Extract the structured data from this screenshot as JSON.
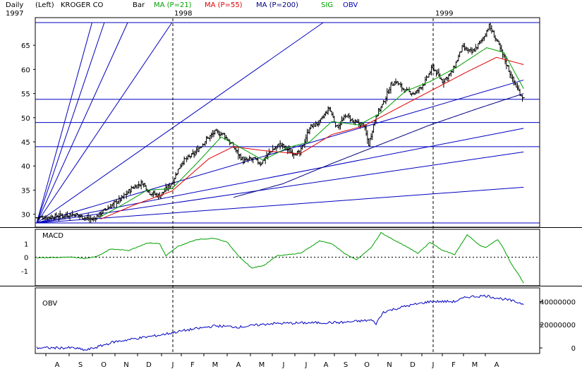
{
  "header": {
    "period": "Daily",
    "scale": "(Left)",
    "company": "KROGER CO",
    "start_year": "1997",
    "type_label": "Bar",
    "legend": [
      {
        "label": "MA (P=21)",
        "color": "#00a000"
      },
      {
        "label": "MA (P=55)",
        "color": "#e00000"
      },
      {
        "label": "MA (P=200)",
        "color": "#000080"
      },
      {
        "label": "SIG",
        "color": "#00a000"
      },
      {
        "label": "OBV",
        "color": "#0000c0"
      }
    ]
  },
  "year_markers": [
    "1998",
    "1999"
  ],
  "month_labels": [
    "A",
    "S",
    "O",
    "N",
    "D",
    "J",
    "F",
    "M",
    "A",
    "M",
    "J",
    "J",
    "A",
    "S",
    "O",
    "N",
    "D",
    "J",
    "F",
    "M",
    "A"
  ],
  "panel_labels": {
    "macd": "MACD",
    "obv": "OBV"
  },
  "colors": {
    "price_bar": "#000000",
    "ma21": "#00a000",
    "ma55": "#e00000",
    "ma200": "#000080",
    "gann": "#0000c0",
    "macd": "#00a000",
    "obv": "#0000c0"
  },
  "chart_data": [
    {
      "type": "line",
      "title": "KROGER CO",
      "panel": "price",
      "y_ticks": [
        30,
        35,
        40,
        45,
        50,
        55,
        60,
        65
      ],
      "ylim": [
        28.2,
        69.7
      ],
      "price_anchors": [
        [
          0,
          29.3
        ],
        [
          10,
          29.4
        ],
        [
          22,
          29.8
        ],
        [
          31,
          30.0
        ],
        [
          40,
          29.2
        ],
        [
          46,
          28.9
        ],
        [
          52,
          30.2
        ],
        [
          60,
          31.7
        ],
        [
          70,
          33.5
        ],
        [
          78,
          35.5
        ],
        [
          86,
          36.5
        ],
        [
          92,
          34.5
        ],
        [
          100,
          33.8
        ],
        [
          110,
          36.5
        ],
        [
          118,
          40.8
        ],
        [
          128,
          42.5
        ],
        [
          138,
          45.5
        ],
        [
          145,
          47.0
        ],
        [
          152,
          46.5
        ],
        [
          160,
          44.0
        ],
        [
          168,
          41.0
        ],
        [
          176,
          41.5
        ],
        [
          182,
          40.5
        ],
        [
          190,
          43.0
        ],
        [
          198,
          44.5
        ],
        [
          206,
          43.0
        ],
        [
          214,
          42.5
        ],
        [
          222,
          48.0
        ],
        [
          230,
          49.0
        ],
        [
          238,
          52.0
        ],
        [
          244,
          48.0
        ],
        [
          252,
          50.5
        ],
        [
          258,
          49.0
        ],
        [
          266,
          48.5
        ],
        [
          270,
          44.5
        ],
        [
          276,
          50.5
        ],
        [
          282,
          53.0
        ],
        [
          288,
          56.8
        ],
        [
          292,
          57.5
        ],
        [
          300,
          55.5
        ],
        [
          308,
          55.0
        ],
        [
          316,
          57.5
        ],
        [
          322,
          60.5
        ],
        [
          330,
          57.5
        ],
        [
          338,
          59.5
        ],
        [
          346,
          64.5
        ],
        [
          354,
          63.5
        ],
        [
          362,
          66.0
        ],
        [
          368,
          69.0
        ],
        [
          374,
          66.0
        ],
        [
          380,
          62.5
        ],
        [
          386,
          58.5
        ],
        [
          392,
          55.5
        ],
        [
          396,
          54.0
        ]
      ],
      "ma21_anchors": [
        [
          52,
          29.5
        ],
        [
          70,
          32.0
        ],
        [
          90,
          35.0
        ],
        [
          110,
          35.3
        ],
        [
          130,
          40.5
        ],
        [
          150,
          46.0
        ],
        [
          168,
          43.5
        ],
        [
          184,
          41.2
        ],
        [
          204,
          43.8
        ],
        [
          222,
          45.0
        ],
        [
          240,
          49.2
        ],
        [
          262,
          48.5
        ],
        [
          280,
          51.0
        ],
        [
          300,
          55.5
        ],
        [
          320,
          57.5
        ],
        [
          342,
          60.5
        ],
        [
          366,
          64.5
        ],
        [
          380,
          63.5
        ],
        [
          396,
          56.0
        ]
      ],
      "ma55_anchors": [
        [
          52,
          29.0
        ],
        [
          80,
          32.0
        ],
        [
          110,
          34.8
        ],
        [
          140,
          41.5
        ],
        [
          160,
          44.0
        ],
        [
          184,
          43.2
        ],
        [
          214,
          42.5
        ],
        [
          240,
          46.5
        ],
        [
          266,
          48.3
        ],
        [
          290,
          51.5
        ],
        [
          320,
          55.5
        ],
        [
          350,
          59.5
        ],
        [
          374,
          62.5
        ],
        [
          396,
          61.0
        ]
      ],
      "ma200_anchors": [
        [
          160,
          33.5
        ],
        [
          200,
          36.3
        ],
        [
          240,
          40.5
        ],
        [
          280,
          44.5
        ],
        [
          320,
          48.5
        ],
        [
          360,
          52.0
        ],
        [
          396,
          55.0
        ]
      ],
      "gann_lines": [
        {
          "p0": [
            0,
            28.2
          ],
          "p1": [
            396,
            57.8
          ],
          "ghost": false
        },
        {
          "p0": [
            0,
            28.2
          ],
          "p1": [
            396,
            47.8
          ],
          "ghost": false
        },
        {
          "p0": [
            0,
            28.2
          ],
          "p1": [
            396,
            42.9
          ],
          "ghost": false
        },
        {
          "p0": [
            0,
            28.2
          ],
          "p1": [
            396,
            35.6
          ],
          "ghost": false
        },
        {
          "p0": [
            0,
            28.2
          ],
          "p1": [
            233,
            69.7
          ],
          "ghost": false
        },
        {
          "p0": [
            0,
            28.2
          ],
          "p1": [
            110,
            69.7
          ],
          "ghost": false
        },
        {
          "p0": [
            0,
            28.2
          ],
          "p1": [
            74,
            69.7
          ],
          "ghost": false
        },
        {
          "p0": [
            0,
            28.2
          ],
          "p1": [
            55,
            69.7
          ],
          "ghost": false
        },
        {
          "p0": [
            0,
            28.2
          ],
          "p1": [
            45,
            69.7
          ],
          "ghost": false
        }
      ],
      "horizontal_levels": [
        28.2,
        44.0,
        49.0,
        53.8,
        69.7
      ]
    },
    {
      "type": "line",
      "panel": "macd",
      "title": "MACD",
      "y_ticks": [
        1,
        0,
        -1
      ],
      "ylim": [
        -2.0,
        1.95
      ],
      "macd_anchors": [
        [
          0,
          -0.05
        ],
        [
          30,
          0.0
        ],
        [
          40,
          -0.1
        ],
        [
          50,
          0.1
        ],
        [
          60,
          0.6
        ],
        [
          75,
          0.5
        ],
        [
          90,
          1.05
        ],
        [
          100,
          1.0
        ],
        [
          105,
          0.1
        ],
        [
          115,
          0.8
        ],
        [
          130,
          1.3
        ],
        [
          145,
          1.4
        ],
        [
          155,
          1.1
        ],
        [
          165,
          0.0
        ],
        [
          175,
          -0.8
        ],
        [
          185,
          -0.6
        ],
        [
          195,
          0.1
        ],
        [
          215,
          0.3
        ],
        [
          230,
          1.2
        ],
        [
          240,
          1.0
        ],
        [
          250,
          0.3
        ],
        [
          260,
          -0.2
        ],
        [
          272,
          0.7
        ],
        [
          280,
          1.8
        ],
        [
          290,
          1.3
        ],
        [
          300,
          0.8
        ],
        [
          310,
          0.3
        ],
        [
          320,
          1.1
        ],
        [
          330,
          0.5
        ],
        [
          340,
          0.2
        ],
        [
          350,
          1.65
        ],
        [
          360,
          0.9
        ],
        [
          365,
          0.7
        ],
        [
          375,
          1.3
        ],
        [
          380,
          0.6
        ],
        [
          386,
          -0.5
        ],
        [
          392,
          -1.3
        ],
        [
          396,
          -1.9
        ]
      ]
    },
    {
      "type": "line",
      "panel": "obv",
      "title": "OBV",
      "y_ticks": [
        "40000000",
        "20000000",
        "0"
      ],
      "ylim": [
        -3000000,
        50000000
      ],
      "obv_anchors": [
        [
          0,
          0
        ],
        [
          30,
          0
        ],
        [
          40,
          -2000000
        ],
        [
          50,
          1000000
        ],
        [
          62,
          5000000
        ],
        [
          80,
          8000000
        ],
        [
          100,
          11000000
        ],
        [
          120,
          15000000
        ],
        [
          145,
          19000000
        ],
        [
          165,
          18000000
        ],
        [
          190,
          21000000
        ],
        [
          215,
          21500000
        ],
        [
          250,
          22000000
        ],
        [
          272,
          24000000
        ],
        [
          276,
          21000000
        ],
        [
          282,
          31000000
        ],
        [
          300,
          36000000
        ],
        [
          320,
          40000000
        ],
        [
          340,
          40000000
        ],
        [
          350,
          44000000
        ],
        [
          365,
          45000000
        ],
        [
          385,
          41000000
        ],
        [
          396,
          38000000
        ]
      ]
    }
  ]
}
